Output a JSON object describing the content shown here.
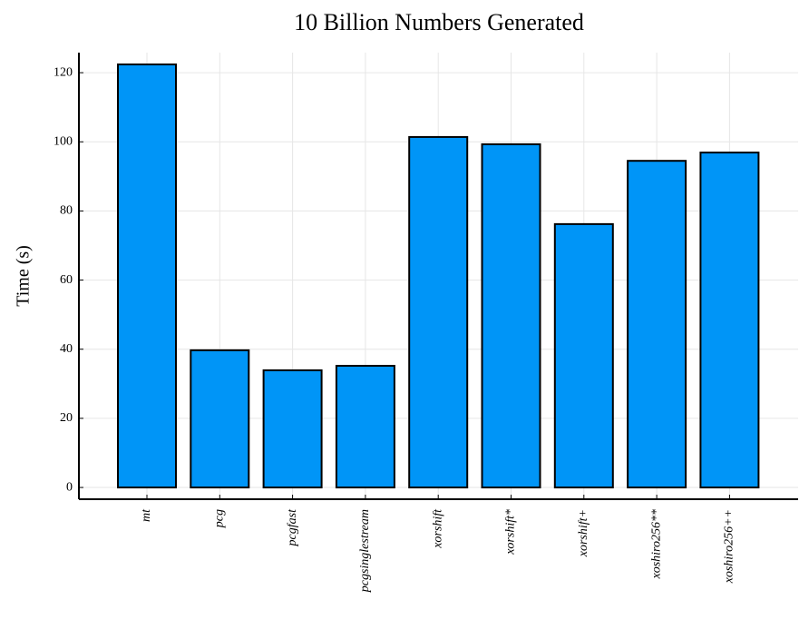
{
  "chart_data": {
    "type": "bar",
    "title": "10 Billion Numbers Generated",
    "y_label": "Time (s)",
    "categories": [
      "mt",
      "pcg",
      "pcgfast",
      "pcgsinglestream",
      "xorshift",
      "xorshift*",
      "xorshift+",
      "xoshiro256**",
      "xoshiro256++"
    ],
    "values": [
      122.4,
      39.7,
      33.9,
      35.2,
      101.4,
      99.3,
      76.2,
      94.5,
      96.9
    ],
    "color": "#0095f7",
    "ylim": [
      -3.4,
      125.8
    ],
    "yticks": [
      0,
      20,
      40,
      60,
      80,
      100,
      120
    ],
    "grid": true
  }
}
